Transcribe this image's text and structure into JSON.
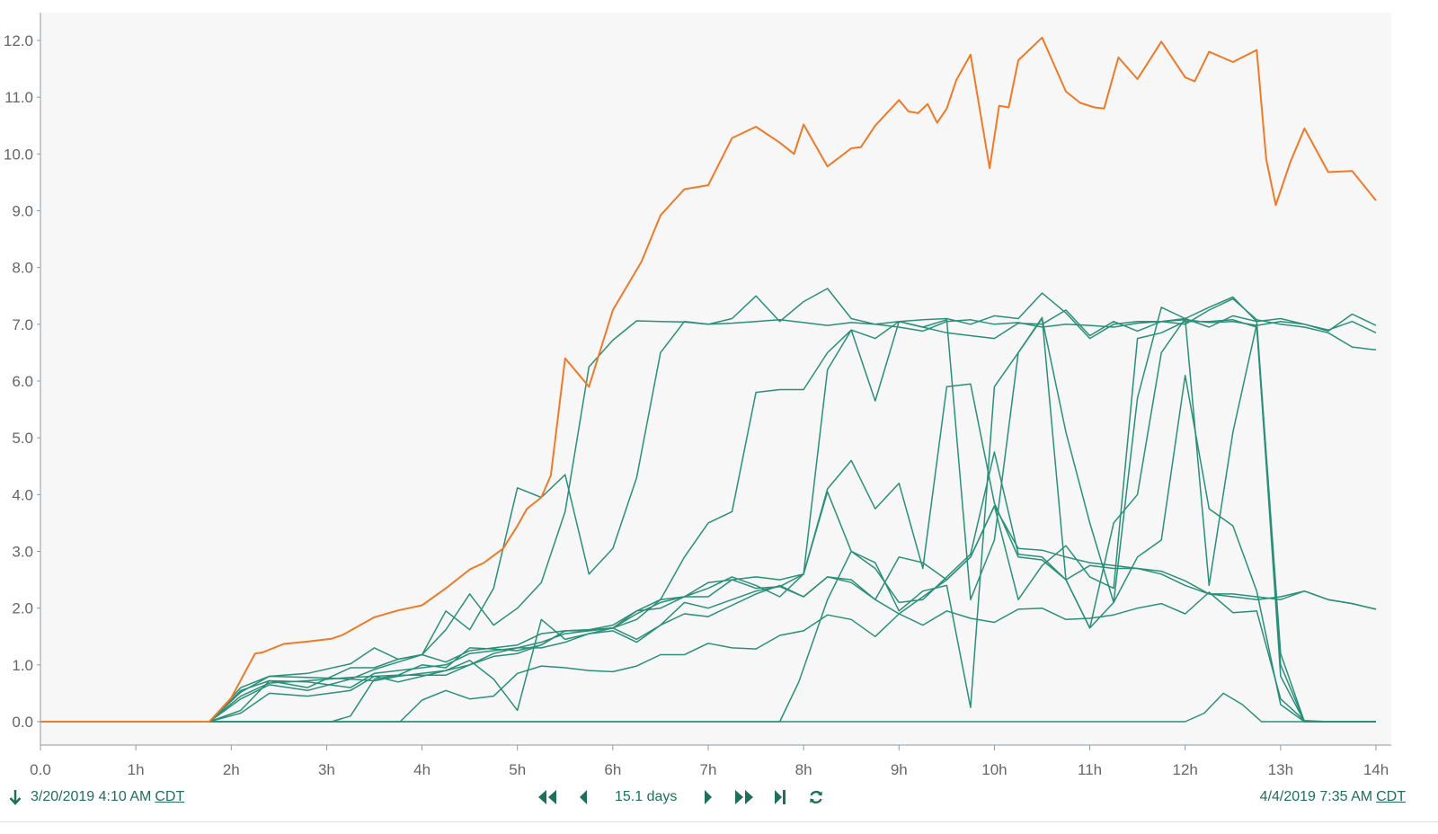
{
  "chart_data": {
    "type": "line",
    "title": "",
    "xlabel": "",
    "ylabel": "",
    "xlim": [
      0,
      14
    ],
    "ylim": [
      0,
      12.3
    ],
    "x_ticks": [
      "0.0",
      "1h",
      "2h",
      "3h",
      "4h",
      "5h",
      "6h",
      "7h",
      "8h",
      "9h",
      "10h",
      "11h",
      "12h",
      "13h",
      "14h"
    ],
    "y_ticks": [
      "0.0",
      "1.0",
      "2.0",
      "3.0",
      "4.0",
      "5.0",
      "6.0",
      "7.0",
      "8.0",
      "9.0",
      "10.0",
      "11.0",
      "12.0"
    ],
    "grid": false,
    "colors": {
      "highlight": "#ef7a28",
      "series": "#2a8f78",
      "plot_bg": "#f7f7f7",
      "axis": "#8f9aa3"
    },
    "series": [
      {
        "highlight": true,
        "x": [
          0,
          1.77,
          2.0,
          2.25,
          2.33,
          2.55,
          2.8,
          3.05,
          3.17,
          3.5,
          3.75,
          4.0,
          4.25,
          4.5,
          4.65,
          4.85,
          5.0,
          5.1,
          5.25,
          5.35,
          5.5,
          5.75,
          6.0,
          6.3,
          6.5,
          6.75,
          7.0,
          7.25,
          7.5,
          7.75,
          7.9,
          8.0,
          8.25,
          8.5,
          8.6,
          8.75,
          9.0,
          9.1,
          9.2,
          9.3,
          9.4,
          9.5,
          9.6,
          9.75,
          9.95,
          10.05,
          10.15,
          10.25,
          10.5,
          10.75,
          10.9,
          11.05,
          11.15,
          11.3,
          11.5,
          11.75,
          12.0,
          12.1,
          12.25,
          12.5,
          12.75,
          12.85,
          12.95,
          13.1,
          13.25,
          13.5,
          13.75,
          14.0
        ],
        "values": [
          0,
          0,
          0.42,
          1.2,
          1.22,
          1.37,
          1.41,
          1.46,
          1.53,
          1.84,
          1.96,
          2.05,
          2.35,
          2.68,
          2.8,
          3.05,
          3.45,
          3.75,
          3.95,
          4.34,
          6.4,
          5.9,
          7.25,
          8.1,
          8.92,
          9.38,
          9.45,
          10.28,
          10.48,
          10.2,
          10.0,
          10.52,
          9.78,
          10.1,
          10.12,
          10.5,
          10.95,
          10.75,
          10.72,
          10.88,
          10.55,
          10.8,
          11.3,
          11.75,
          9.75,
          10.85,
          10.82,
          11.65,
          12.05,
          11.1,
          10.9,
          10.82,
          10.8,
          11.7,
          11.32,
          11.98,
          11.35,
          11.28,
          11.8,
          11.62,
          11.83,
          9.9,
          9.1,
          9.85,
          10.45,
          9.68,
          9.7,
          9.18
        ]
      },
      {
        "x": [
          0,
          1.77,
          2.1,
          2.4,
          2.8,
          3.25,
          3.5,
          3.75,
          4.0,
          4.25,
          4.5,
          4.75,
          5.0,
          5.25,
          5.5,
          5.75,
          6.0,
          6.25,
          6.5,
          6.75,
          7.0,
          7.25,
          7.5,
          7.75,
          8.0,
          8.25,
          8.5,
          8.75,
          9.0,
          9.25,
          9.5,
          9.75,
          10.0,
          10.25,
          10.5,
          10.75,
          11.0,
          11.25,
          11.5,
          11.75,
          12.0,
          12.25,
          12.5,
          12.75,
          13.0,
          13.25,
          13.5,
          13.75,
          14.0
        ],
        "values": [
          0,
          0,
          0.52,
          0.8,
          0.85,
          1.02,
          1.3,
          1.1,
          1.18,
          1.95,
          1.62,
          2.35,
          4.12,
          3.95,
          4.35,
          2.6,
          3.05,
          4.3,
          6.5,
          7.05,
          7.0,
          7.1,
          7.5,
          7.05,
          7.4,
          7.63,
          7.1,
          7.0,
          7.05,
          7.08,
          7.1,
          7.0,
          7.15,
          7.1,
          7.55,
          7.2,
          6.75,
          7.0,
          7.05,
          7.05,
          7.1,
          7.3,
          7.48,
          7.05,
          7.1,
          7.0,
          6.88,
          7.18,
          6.98
        ]
      },
      {
        "x": [
          0,
          1.77,
          2.1,
          2.4,
          2.8,
          3.25,
          3.5,
          3.75,
          4.0,
          4.25,
          4.5,
          4.75,
          5.0,
          5.25,
          5.5,
          5.75,
          6.0,
          6.25,
          6.5,
          6.75,
          7.0,
          7.25,
          7.5,
          7.75,
          8.0,
          8.25,
          8.5,
          8.75,
          9.0,
          9.25,
          9.5,
          9.75,
          10.0,
          10.25,
          10.5,
          10.75,
          11.0,
          11.25,
          11.5,
          11.75,
          12.0,
          12.25,
          12.5,
          12.75,
          13.0,
          13.25,
          13.5,
          13.75,
          14.0
        ],
        "values": [
          0,
          0,
          0.6,
          0.8,
          0.78,
          0.75,
          0.92,
          1.05,
          1.18,
          1.62,
          2.25,
          1.7,
          2.0,
          2.45,
          3.7,
          6.25,
          6.72,
          7.06,
          7.05,
          7.04,
          7.0,
          7.02,
          7.05,
          7.08,
          7.03,
          6.98,
          7.03,
          7.0,
          6.95,
          6.88,
          7.05,
          7.08,
          7.0,
          7.03,
          6.95,
          7.0,
          6.98,
          6.95,
          7.02,
          7.05,
          7.08,
          7.03,
          7.05,
          6.98,
          7.05,
          7.0,
          6.9,
          7.05,
          6.85
        ]
      },
      {
        "x": [
          0,
          1.77,
          2.1,
          2.4,
          2.8,
          3.25,
          3.5,
          3.75,
          4.0,
          4.25,
          4.5,
          4.75,
          5.0,
          5.25,
          5.5,
          5.75,
          6.0,
          6.25,
          6.5,
          6.75,
          7.0,
          7.25,
          7.5,
          7.75,
          8.0,
          8.25,
          8.5,
          8.75,
          9.0,
          9.25,
          9.5,
          9.75,
          10.0,
          10.25,
          10.5,
          10.75,
          11.0,
          11.25,
          11.5,
          11.75,
          12.0,
          12.25,
          12.5,
          12.75,
          13.0,
          13.25,
          13.5,
          13.75,
          14.0
        ],
        "values": [
          0,
          0,
          0.55,
          0.72,
          0.7,
          0.6,
          0.85,
          0.9,
          0.95,
          1.0,
          1.2,
          1.25,
          1.3,
          1.4,
          1.55,
          1.6,
          1.65,
          1.8,
          2.15,
          2.9,
          3.5,
          3.7,
          5.8,
          5.85,
          5.85,
          6.5,
          6.9,
          5.65,
          7.05,
          6.95,
          6.85,
          6.8,
          6.75,
          7.02,
          7.0,
          7.25,
          6.8,
          7.05,
          6.88,
          7.05,
          7.0,
          7.25,
          7.45,
          7.08,
          7.0,
          6.95,
          6.85,
          6.6,
          6.55
        ]
      },
      {
        "x": [
          0,
          1.77,
          2.1,
          2.4,
          2.8,
          3.25,
          3.5,
          3.75,
          4.0,
          4.25,
          4.5,
          4.75,
          5.0,
          5.25,
          5.5,
          5.75,
          6.0,
          6.25,
          6.5,
          6.75,
          7.0,
          7.25,
          7.5,
          7.75,
          8.0,
          8.25,
          8.5,
          8.75,
          9.0,
          9.25,
          9.5,
          9.75,
          10.0,
          10.25,
          10.5,
          10.75,
          11.0,
          11.25,
          11.5,
          11.75,
          12.0,
          12.25,
          12.5,
          12.75,
          13.0,
          13.25,
          13.5,
          13.75,
          14.0
        ],
        "values": [
          0,
          0,
          0.45,
          0.68,
          0.72,
          0.78,
          0.8,
          0.82,
          1.0,
          0.95,
          1.3,
          1.28,
          1.25,
          1.35,
          1.6,
          1.62,
          1.7,
          1.95,
          2.15,
          2.2,
          2.45,
          2.5,
          2.55,
          2.5,
          2.6,
          4.1,
          4.6,
          3.75,
          4.2,
          2.7,
          5.9,
          5.95,
          3.85,
          2.9,
          2.85,
          2.5,
          2.75,
          2.7,
          2.7,
          2.6,
          2.4,
          2.25,
          2.25,
          2.2,
          2.15,
          2.3,
          2.15,
          2.08,
          1.98
        ]
      },
      {
        "x": [
          0,
          1.77,
          2.1,
          2.4,
          2.8,
          3.25,
          3.5,
          3.75,
          4.0,
          4.25,
          4.5,
          4.75,
          5.0,
          5.25,
          5.5,
          5.75,
          6.0,
          6.25,
          6.5,
          6.75,
          7.0,
          7.25,
          7.5,
          7.75,
          8.0,
          8.25,
          8.5,
          8.75,
          9.0,
          9.25,
          9.5,
          9.75,
          10.0,
          10.25,
          10.5,
          10.75,
          11.0,
          11.25,
          11.5,
          11.75,
          12.0,
          12.25,
          12.5,
          12.75,
          13.0,
          13.25,
          13.5,
          13.75,
          14.0
        ],
        "values": [
          0,
          0,
          0.4,
          0.65,
          0.55,
          0.75,
          0.72,
          0.8,
          0.85,
          0.9,
          1.08,
          0.75,
          0.2,
          1.8,
          1.45,
          1.55,
          1.65,
          1.45,
          1.7,
          1.9,
          1.85,
          2.05,
          2.25,
          2.4,
          2.2,
          2.55,
          2.45,
          2.15,
          1.9,
          1.7,
          1.95,
          1.82,
          1.75,
          1.98,
          2.0,
          1.8,
          1.82,
          1.88,
          2.0,
          2.08,
          1.9,
          2.28,
          1.92,
          1.95,
          0.4,
          0.02,
          0,
          0,
          0
        ]
      },
      {
        "x": [
          0,
          1.77,
          2.1,
          2.4,
          2.8,
          3.25,
          3.5,
          3.75,
          4.0,
          4.25,
          4.5,
          4.75,
          5.0,
          5.25,
          5.5,
          5.75,
          6.0,
          6.25,
          6.5,
          6.75,
          7.0,
          7.25,
          7.5,
          7.75,
          8.0,
          8.25,
          8.5,
          8.75,
          9.0,
          9.25,
          9.5,
          9.75,
          10.0,
          10.25,
          10.5,
          10.75,
          11.0,
          11.25,
          11.5,
          11.75,
          12.0,
          12.25,
          12.5,
          12.75,
          13.0,
          13.25,
          13.5,
          13.75,
          14.0
        ],
        "values": [
          0,
          0,
          0.2,
          0.72,
          0.6,
          0.95,
          0.95,
          1.1,
          1.18,
          1.05,
          1.25,
          1.3,
          1.35,
          1.55,
          1.6,
          1.62,
          1.65,
          1.95,
          2.0,
          2.2,
          2.2,
          2.5,
          2.35,
          2.38,
          2.6,
          4.05,
          3.0,
          2.7,
          2.1,
          2.15,
          2.55,
          2.95,
          4.75,
          2.95,
          2.9,
          2.5,
          1.65,
          2.1,
          5.7,
          7.3,
          7.1,
          6.95,
          7.15,
          7.05,
          1.2,
          0,
          0,
          0,
          0
        ]
      },
      {
        "x": [
          0,
          1.77,
          2.1,
          2.4,
          2.8,
          3.25,
          3.5,
          3.75,
          4.0,
          4.25,
          4.5,
          4.75,
          5.0,
          5.25,
          5.5,
          5.75,
          6.0,
          6.25,
          6.5,
          6.75,
          7.0,
          7.25,
          7.5,
          7.75,
          8.0,
          8.25,
          8.5,
          8.75,
          9.0,
          9.25,
          9.5,
          9.75,
          10.0,
          10.25,
          10.5,
          10.75,
          11.0,
          11.25,
          11.5,
          11.75,
          12.0,
          12.25,
          12.5,
          12.75,
          13.0,
          13.25,
          13.5,
          13.75,
          14.0
        ],
        "values": [
          0,
          0,
          0.15,
          0.5,
          0.45,
          0.55,
          0.8,
          0.7,
          0.8,
          0.9,
          1.0,
          1.2,
          1.3,
          1.3,
          1.4,
          1.55,
          1.6,
          1.4,
          1.7,
          2.1,
          2.0,
          2.15,
          2.3,
          2.38,
          2.2,
          2.55,
          2.5,
          2.15,
          2.9,
          2.8,
          2.5,
          2.9,
          3.8,
          2.15,
          2.75,
          3.1,
          2.55,
          2.35,
          6.75,
          6.85,
          7.05,
          7.05,
          7.08,
          6.95,
          1.0,
          0,
          0,
          0,
          0
        ]
      },
      {
        "x": [
          0,
          1.77,
          2.25,
          2.5,
          2.8,
          3.05,
          3.25,
          3.5,
          3.75,
          4.0,
          4.25,
          4.5,
          4.75,
          5.0,
          5.25,
          5.5,
          5.75,
          6.0,
          6.25,
          6.5,
          6.75,
          7.0,
          7.25,
          7.5,
          7.75,
          8.0,
          8.25,
          8.5,
          8.75,
          9.0,
          9.25,
          9.5,
          9.75,
          10.0,
          10.25,
          10.5,
          10.75,
          11.0,
          11.25,
          11.5,
          11.75,
          12.0,
          12.25,
          12.5,
          12.75,
          13.0,
          13.25,
          13.5,
          13.75,
          14.0
        ],
        "values": [
          0,
          0,
          0,
          0,
          0,
          0,
          0.1,
          0.75,
          0.82,
          0.82,
          0.82,
          1.0,
          1.15,
          1.2,
          1.35,
          1.6,
          1.6,
          1.65,
          1.9,
          2.1,
          2.2,
          2.35,
          2.55,
          2.4,
          2.2,
          2.6,
          6.2,
          6.9,
          6.75,
          7.05,
          6.95,
          7.08,
          2.15,
          3.2,
          6.5,
          7.12,
          2.5,
          1.65,
          3.5,
          4.0,
          6.5,
          7.1,
          2.4,
          5.1,
          7.0,
          0.8,
          0,
          0,
          0,
          0
        ]
      },
      {
        "x": [
          0,
          3.77,
          4.0,
          4.25,
          4.5,
          4.75,
          5.0,
          5.25,
          5.5,
          5.75,
          6.0,
          6.25,
          6.5,
          6.75,
          7.0,
          7.25,
          7.5,
          7.75,
          8.0,
          8.25,
          8.5,
          8.75,
          9.0,
          9.25,
          9.5,
          9.75,
          10.0,
          10.25,
          10.5,
          10.75,
          11.0,
          11.25,
          11.5,
          11.75,
          12.0,
          12.25,
          12.5,
          12.75,
          13.0,
          13.25,
          13.5,
          13.75,
          14.0
        ],
        "values": [
          0,
          0,
          0.38,
          0.55,
          0.4,
          0.45,
          0.85,
          0.98,
          0.95,
          0.9,
          0.88,
          0.98,
          1.18,
          1.18,
          1.38,
          1.3,
          1.28,
          1.52,
          1.6,
          1.88,
          1.8,
          1.5,
          1.9,
          2.2,
          2.5,
          2.9,
          3.8,
          3.05,
          3.02,
          2.9,
          2.8,
          2.75,
          2.7,
          2.65,
          2.48,
          2.25,
          2.2,
          2.15,
          2.2,
          2.3,
          2.15,
          2.08,
          1.98
        ]
      },
      {
        "x": [
          0,
          7.75,
          7.95,
          8.25,
          8.5,
          8.75,
          9.0,
          9.25,
          9.5,
          9.75,
          10.0,
          10.25,
          10.5,
          10.75,
          11.0,
          11.25,
          11.5,
          11.75,
          12.0,
          12.25,
          12.5,
          12.75,
          13.0,
          13.25,
          14.0
        ],
        "values": [
          0,
          0,
          0.7,
          2.15,
          3.0,
          2.8,
          1.95,
          2.3,
          2.4,
          0.25,
          5.9,
          6.5,
          7.1,
          5.1,
          3.5,
          2.1,
          2.9,
          3.2,
          6.1,
          3.75,
          3.45,
          2.3,
          0.3,
          0,
          0
        ]
      },
      {
        "x": [
          0,
          11.75,
          12.0,
          12.2,
          12.4,
          12.6,
          12.8,
          13.0,
          14.0
        ],
        "values": [
          0,
          0,
          0,
          0.15,
          0.5,
          0.3,
          0,
          0,
          0
        ]
      }
    ]
  },
  "footer": {
    "start_date": "3/20/2019 4:10 AM",
    "start_tz": "CDT",
    "end_date": "4/4/2019 7:35 AM",
    "end_tz": "CDT",
    "span_label": "15.1 days"
  }
}
